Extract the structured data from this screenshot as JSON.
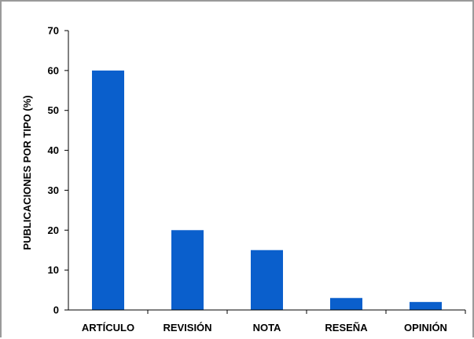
{
  "chart_data": {
    "type": "bar",
    "title": "",
    "xlabel": "",
    "ylabel": "PUBLICACIONES POR TIPO (%)",
    "categories": [
      "ARTÍCULO",
      "REVISIÓN",
      "NOTA",
      "RESEÑA",
      "OPINIÓN"
    ],
    "values": [
      60,
      20,
      15,
      3,
      2
    ],
    "ylim": [
      0,
      70
    ],
    "yticks": [
      "0",
      "10",
      "20",
      "30",
      "40",
      "50",
      "60",
      "70"
    ],
    "grid": false,
    "legend": "none",
    "bar_color": "#0a5fcc"
  }
}
